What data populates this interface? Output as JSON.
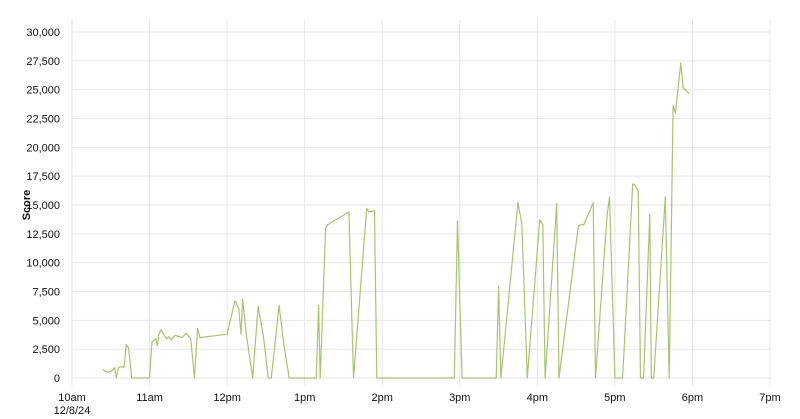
{
  "chart_data": {
    "type": "line",
    "title": "",
    "xlabel": "",
    "ylabel": "Score",
    "x_date_label": "12/8/24",
    "x_ticks": [
      "10am",
      "11am",
      "12pm",
      "1pm",
      "2pm",
      "3pm",
      "4pm",
      "5pm",
      "6pm",
      "7pm"
    ],
    "y_ticks": [
      "0",
      "2,500",
      "5,000",
      "7,500",
      "10,000",
      "12,500",
      "15,000",
      "17,500",
      "20,000",
      "22,500",
      "25,000",
      "27,500",
      "30,000"
    ],
    "xlim": [
      10,
      19
    ],
    "ylim": [
      0,
      30000
    ],
    "grid": true,
    "series": [
      {
        "color": "#a6c56e",
        "x": [
          10.4,
          10.43,
          10.47,
          10.5,
          10.53,
          10.55,
          10.57,
          10.6,
          10.65,
          10.67,
          10.7,
          10.73,
          10.77,
          11.0,
          11.03,
          11.08,
          11.1,
          11.12,
          11.15,
          11.18,
          11.22,
          11.25,
          11.28,
          11.33,
          11.38,
          11.42,
          11.47,
          11.53,
          11.58,
          11.62,
          11.65,
          12.0,
          12.1,
          12.15,
          12.18,
          12.2,
          12.25,
          12.33,
          12.4,
          12.47,
          12.53,
          12.57,
          12.67,
          12.73,
          12.8,
          12.85,
          12.9,
          13.15,
          13.18,
          13.2,
          13.27,
          13.3,
          13.57,
          13.63,
          13.8,
          13.83,
          13.9,
          13.93,
          14.93,
          14.97,
          15.03,
          15.47,
          15.5,
          15.53,
          15.75,
          15.8,
          15.87,
          16.03,
          16.07,
          16.1,
          16.25,
          16.28,
          16.53,
          16.57,
          16.6,
          16.72,
          16.75,
          16.9,
          16.93,
          17.0,
          17.05,
          17.1,
          17.23,
          17.25,
          17.3,
          17.33,
          17.37,
          17.45,
          17.47,
          17.5,
          17.63,
          17.65,
          17.7,
          17.75,
          17.78,
          17.85,
          17.88,
          17.95
        ],
        "values": [
          700,
          600,
          500,
          600,
          700,
          900,
          0,
          900,
          1000,
          900,
          2900,
          2600,
          0,
          0,
          3100,
          3400,
          2800,
          3800,
          4200,
          3800,
          3400,
          3600,
          3300,
          3700,
          3600,
          3500,
          3900,
          3400,
          0,
          4300,
          3500,
          3800,
          6700,
          6000,
          3800,
          6800,
          3700,
          0,
          6200,
          3500,
          0,
          0,
          6300,
          3000,
          0,
          0,
          0,
          0,
          6300,
          0,
          13000,
          13300,
          14400,
          0,
          14700,
          14400,
          14500,
          0,
          0,
          13600,
          0,
          0,
          7900,
          0,
          15200,
          13400,
          0,
          13700,
          13300,
          0,
          15100,
          0,
          13200,
          13300,
          13300,
          15200,
          0,
          14100,
          15700,
          0,
          0,
          0,
          16800,
          16800,
          16200,
          0,
          0,
          14200,
          0,
          0,
          13500,
          15700,
          0,
          23600,
          23000,
          27300,
          25200,
          24700
        ]
      }
    ]
  }
}
